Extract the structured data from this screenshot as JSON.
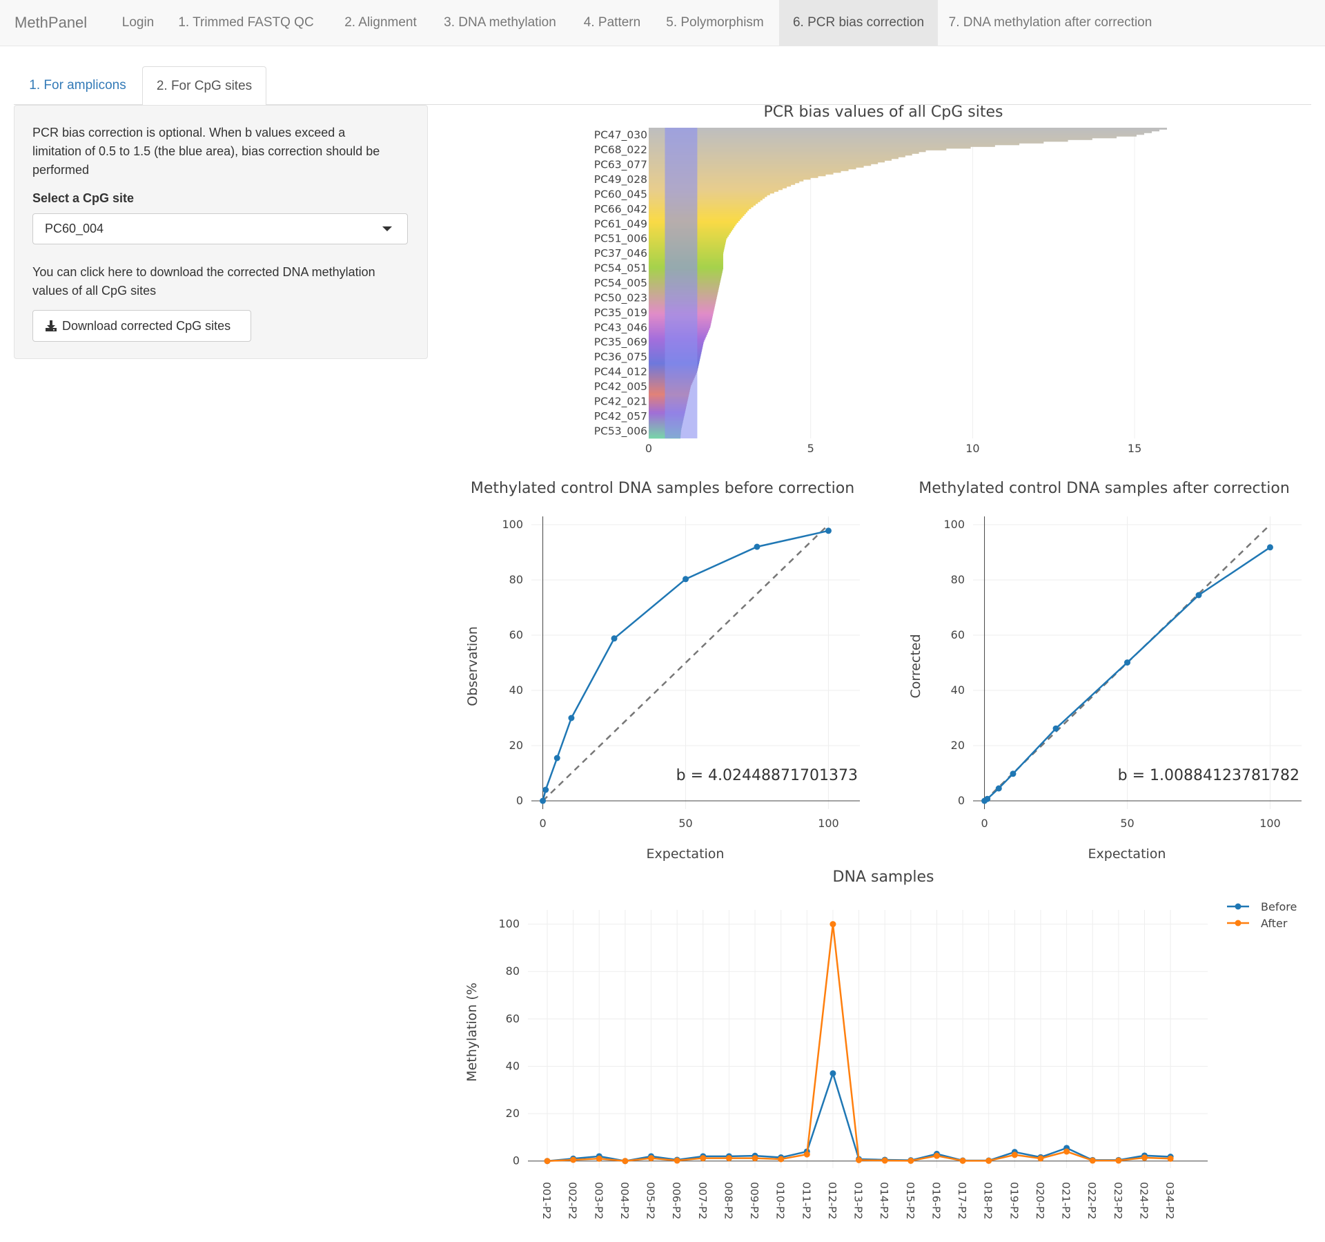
{
  "navbar": {
    "brand": "MethPanel",
    "items": [
      {
        "label": "Login"
      },
      {
        "label": "1. Trimmed FASTQ QC"
      },
      {
        "label": "2. Alignment"
      },
      {
        "label": "3. DNA methylation"
      },
      {
        "label": "4. Pattern"
      },
      {
        "label": "5. Polymorphism"
      },
      {
        "label": "6. PCR bias correction"
      },
      {
        "label": "7. DNA methylation after correction"
      }
    ],
    "active_index": 6
  },
  "subtabs": [
    {
      "label": "1. For amplicons"
    },
    {
      "label": "2. For CpG sites"
    }
  ],
  "panel": {
    "intro_lines": [
      "PCR bias correction is optional. When b values exceed a",
      "limitation of 0.5 to 1.5 (the blue area), bias correction should be",
      "performed"
    ],
    "select_label": "Select a CpG site",
    "select_value": "PC60_004",
    "download_lines": [
      "You can click here to download the corrected DNA methylation",
      "values of all CpG sites"
    ],
    "download_button": "Download corrected CpG sites",
    "download_icon": "download-icon"
  },
  "chart_data": [
    {
      "type": "bar",
      "orientation": "horizontal",
      "title": "PCR bias values of all CpG sites",
      "categories": [
        "PC47_030",
        "PC68_022",
        "PC63_077",
        "PC49_028",
        "PC60_045",
        "PC66_042",
        "PC61_049",
        "PC51_006",
        "PC37_046",
        "PC54_051",
        "PC54_005",
        "PC50_023",
        "PC35_019",
        "PC43_046",
        "PC35_069",
        "PC36_075",
        "PC44_012",
        "PC42_005",
        "PC42_021",
        "PC42_057",
        "PC53_006"
      ],
      "values": [
        15.0,
        8.6,
        6.8,
        4.8,
        3.7,
        3.1,
        2.7,
        2.4,
        2.3,
        2.3,
        2.2,
        2.1,
        2.0,
        1.9,
        1.7,
        1.6,
        1.5,
        1.3,
        1.2,
        1.1,
        1.0
      ],
      "max_value": 16.0,
      "highlight_band": [
        0.5,
        1.5
      ],
      "highlight_color": "#8a8ff0",
      "xticks": [
        0,
        5,
        10,
        15
      ],
      "xlim": [
        0,
        19.6
      ]
    },
    {
      "type": "line",
      "title": "Methylated control DNA samples before correction",
      "xlabel": "Expectation",
      "ylabel": "Observation",
      "x": [
        0,
        1,
        5,
        10,
        25,
        50,
        75,
        100
      ],
      "y": [
        0,
        4,
        15.5,
        30,
        58.8,
        80.3,
        92,
        97.8
      ],
      "reference_line": [
        [
          0,
          0
        ],
        [
          100,
          100
        ]
      ],
      "annotation": "b = 4.02448871701373",
      "xticks": [
        0,
        50,
        100
      ],
      "yticks": [
        0,
        20,
        40,
        60,
        80,
        100
      ],
      "xlim": [
        -4,
        111
      ],
      "ylim": [
        -3,
        103
      ],
      "color": "#1f77b4"
    },
    {
      "type": "line",
      "title": "Methylated control DNA samples after correction",
      "xlabel": "Expectation",
      "ylabel": "Corrected",
      "x": [
        0,
        1,
        5,
        10,
        25,
        50,
        75,
        100
      ],
      "y": [
        0,
        0.7,
        4.5,
        9.8,
        26.2,
        50.1,
        74.5,
        91.8
      ],
      "reference_line": [
        [
          0,
          0
        ],
        [
          100,
          100
        ]
      ],
      "annotation": "b = 1.00884123781782",
      "xticks": [
        0,
        50,
        100
      ],
      "yticks": [
        0,
        20,
        40,
        60,
        80,
        100
      ],
      "xlim": [
        -4,
        111
      ],
      "ylim": [
        -3,
        103
      ],
      "color": "#1f77b4"
    },
    {
      "type": "line",
      "title": "DNA samples",
      "ylabel": "Methylation (%",
      "categories": [
        "001-P2",
        "002-P2",
        "003-P2",
        "004-P2",
        "005-P2",
        "006-P2",
        "007-P2",
        "008-P2",
        "009-P2",
        "010-P2",
        "011-P2",
        "012-P2",
        "013-P2",
        "014-P2",
        "015-P2",
        "016-P2",
        "017-P2",
        "018-P2",
        "019-P2",
        "020-P2",
        "021-P2",
        "022-P2",
        "023-P2",
        "024-P2",
        "034-P2"
      ],
      "series": [
        {
          "name": "Before",
          "color": "#1f77b4",
          "values": [
            0,
            1,
            2,
            0,
            2,
            0.5,
            2,
            2,
            2.2,
            1.5,
            4,
            37,
            0.8,
            0.5,
            0.3,
            3,
            0.2,
            0.2,
            3.8,
            1.6,
            5.5,
            0.4,
            0.4,
            2.3,
            1.8
          ]
        },
        {
          "name": "After",
          "color": "#ff7f0e",
          "values": [
            0,
            0.5,
            1,
            0,
            1.2,
            0.2,
            1.2,
            1.2,
            1.2,
            0.8,
            2.8,
            100,
            0.4,
            0.2,
            0.1,
            2.2,
            0.1,
            0.1,
            2.6,
            1.1,
            4,
            0.2,
            0.2,
            1.4,
            1
          ]
        }
      ],
      "yticks": [
        0,
        20,
        40,
        60,
        80,
        100
      ],
      "ylim": [
        -3,
        106
      ],
      "legend": "top-right"
    }
  ]
}
